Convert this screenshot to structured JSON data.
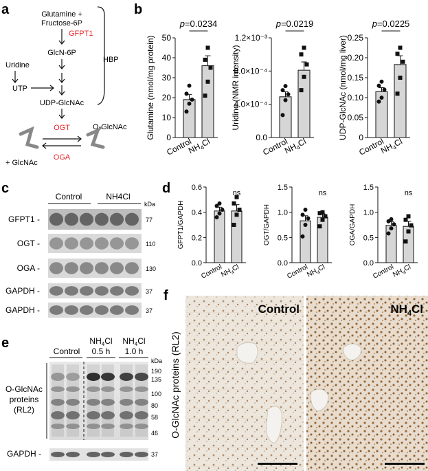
{
  "panels": {
    "a": {
      "label": "a",
      "nodes": {
        "glutamine": "Glutamine +",
        "fructose": "Fructose-6P",
        "gfpt1": "GFPT1",
        "glcn6p": "GlcN-6P",
        "uridine": "Uridine",
        "utp": "UTP",
        "udpglcnac": "UDP-GlcNAc",
        "hbp": "HBP",
        "ogt": "OGT",
        "oga": "OGA",
        "oglcnac": "O-GlcNAc",
        "glcnac": "+ GlcNAc"
      },
      "colors": {
        "enzyme": "#e8262c"
      }
    },
    "b": {
      "label": "b",
      "charts": [
        {
          "type": "bar",
          "ylabel": "Glutamine (nmol/mg protein)",
          "pvalue": "p=0.0234",
          "categories": [
            "Control",
            "NH4Cl"
          ],
          "ylim": [
            0,
            50
          ],
          "yticks": [
            "0",
            "10",
            "20",
            "30",
            "40",
            "50"
          ],
          "means": [
            19,
            36
          ],
          "sem": [
            2.5,
            5
          ],
          "points": [
            [
              13,
              17,
              19,
              22,
              26
            ],
            [
              21,
              28,
              35,
              39,
              45
            ]
          ]
        },
        {
          "type": "bar",
          "ylabel": "Uridine (NMR intensity)",
          "pvalue": "p=0.0219",
          "categories": [
            "Control",
            "NH4Cl"
          ],
          "ylim": [
            0,
            0.0012
          ],
          "yticks": [
            "0.0",
            "4.0×10⁻⁴",
            "8.0×10⁻⁴",
            "1.2×10⁻³"
          ],
          "means": [
            0.00049,
            0.00081
          ],
          "sem": [
            6e-05,
            0.0001
          ],
          "points": [
            [
              0.00027,
              0.00045,
              0.00052,
              0.00057,
              0.00062
            ],
            [
              0.00057,
              0.00073,
              0.00088,
              0.001,
              0.00108
            ]
          ]
        },
        {
          "type": "bar",
          "ylabel": "UDP-GlcNAc (nmol/mg liver)",
          "pvalue": "p=0.0225",
          "categories": [
            "Control",
            "NH4Cl"
          ],
          "ylim": [
            0,
            0.25
          ],
          "yticks": [
            "0",
            "0.05",
            "0.10",
            "0.15",
            "0.20",
            "0.25"
          ],
          "means": [
            0.115,
            0.183
          ],
          "sem": [
            0.01,
            0.022
          ],
          "points": [
            [
              0.09,
              0.1,
              0.12,
              0.13,
              0.14
            ],
            [
              0.11,
              0.15,
              0.19,
              0.21,
              0.225
            ]
          ]
        }
      ]
    },
    "c": {
      "label": "c",
      "groups": [
        "Control",
        "NH4Cl"
      ],
      "kda_label": "kDa",
      "bands": [
        {
          "name": "GFPT1 -",
          "kda": "77"
        },
        {
          "name": "OGT -",
          "kda": "110"
        },
        {
          "name": "OGA -",
          "kda": "130"
        },
        {
          "name": "GAPDH -",
          "kda": "37"
        },
        {
          "name": "GAPDH -",
          "kda": "37"
        }
      ]
    },
    "d": {
      "label": "d",
      "charts": [
        {
          "type": "bar",
          "ylabel": "GFPT1/GAPDH",
          "sig": "ns",
          "categories": [
            "Control",
            "NH4Cl"
          ],
          "ylim": [
            0,
            0.6
          ],
          "yticks": [
            "0.0",
            "0.2",
            "0.4",
            "0.6"
          ],
          "means": [
            0.41,
            0.41
          ],
          "sem": [
            0.03,
            0.05
          ],
          "points": [
            [
              0.36,
              0.39,
              0.42,
              0.45,
              0.47
            ],
            [
              0.3,
              0.38,
              0.42,
              0.47,
              0.52
            ]
          ]
        },
        {
          "type": "bar",
          "ylabel": "OGT/GAPDH",
          "sig": "ns",
          "categories": [
            "Control",
            "NH4Cl"
          ],
          "ylim": [
            0,
            1.5
          ],
          "yticks": [
            "0.0",
            "0.5",
            "1.0",
            "1.5"
          ],
          "means": [
            0.83,
            0.9
          ],
          "sem": [
            0.1,
            0.07
          ],
          "points": [
            [
              0.52,
              0.75,
              0.88,
              0.95,
              1.05
            ],
            [
              0.72,
              0.85,
              0.92,
              0.98,
              1.0
            ]
          ]
        },
        {
          "type": "bar",
          "ylabel": "OGA/GAPDH",
          "sig": "ns",
          "categories": [
            "Control",
            "NH4Cl"
          ],
          "ylim": [
            0,
            1.5
          ],
          "yticks": [
            "0.0",
            "0.5",
            "1.0",
            "1.5"
          ],
          "means": [
            0.74,
            0.72
          ],
          "sem": [
            0.07,
            0.1
          ],
          "points": [
            [
              0.58,
              0.68,
              0.76,
              0.82,
              0.86
            ],
            [
              0.42,
              0.62,
              0.74,
              0.85,
              0.92
            ]
          ]
        }
      ]
    },
    "e": {
      "label": "e",
      "lanes": [
        "Control",
        "NH4Cl\n0.5 h",
        "NH4Cl\n1.0 h"
      ],
      "kda_label": "kDa",
      "markers": [
        "190",
        "135",
        "100",
        "80",
        "58",
        "46"
      ],
      "ylabel": [
        "O-GlcNAc",
        "proteins",
        "(RL2)"
      ],
      "loading": {
        "name": "GAPDH -",
        "kda": "37"
      }
    },
    "f": {
      "label": "f",
      "ylabel": "O-GlcNAc proteins (RL2)",
      "images": [
        "Control",
        "NH4Cl"
      ]
    }
  }
}
